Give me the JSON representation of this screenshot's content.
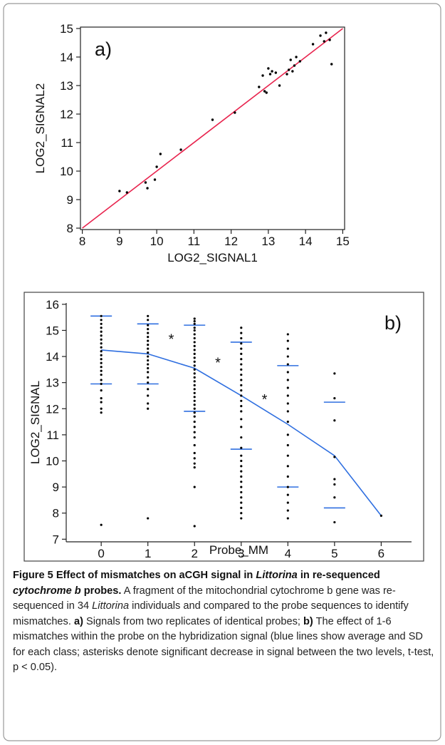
{
  "chart_data": [
    {
      "type": "scatter",
      "annotation": "a)",
      "x_label": "LOG2_SIGNAL1",
      "y_label": "LOG2_SIGNAL2",
      "xlim": [
        7.95,
        15.05
      ],
      "ylim": [
        7.95,
        15.05
      ],
      "xticks": [
        8,
        9,
        10,
        11,
        12,
        13,
        14,
        15
      ],
      "yticks": [
        8,
        9,
        10,
        11,
        12,
        13,
        14,
        15
      ],
      "points": {
        "color": "#000000",
        "x": [
          9.0,
          9.2,
          9.7,
          9.75,
          9.95,
          10.0,
          10.1,
          10.65,
          11.5,
          12.1,
          12.75,
          12.85,
          12.9,
          12.95,
          13.0,
          13.05,
          13.1,
          13.2,
          13.3,
          13.5,
          13.55,
          13.6,
          13.65,
          13.7,
          13.75,
          13.85,
          14.2,
          14.4,
          14.5,
          14.55,
          14.65,
          14.7
        ],
        "values": [
          9.3,
          9.25,
          9.6,
          9.4,
          9.7,
          10.15,
          10.6,
          10.75,
          11.8,
          12.05,
          12.95,
          13.35,
          12.8,
          12.75,
          13.6,
          13.4,
          13.5,
          13.45,
          13.0,
          13.4,
          13.55,
          13.9,
          13.5,
          13.7,
          14.0,
          13.85,
          14.45,
          14.75,
          14.55,
          14.85,
          14.6,
          13.75
        ]
      },
      "line": {
        "color": "#e8244e",
        "x": [
          8,
          15
        ],
        "values": [
          8,
          15
        ]
      }
    },
    {
      "type": "scatter",
      "annotation": "b)",
      "x_label": "Probe_MM",
      "y_label": "LOG2_SIGNAL",
      "xlim": [
        -0.75,
        6.65
      ],
      "ylim": [
        6.9,
        16.05
      ],
      "xticks": [
        0,
        1,
        2,
        3,
        4,
        5,
        6
      ],
      "yticks": [
        7,
        8,
        9,
        10,
        11,
        12,
        13,
        14,
        15,
        16
      ],
      "columns": [
        {
          "x": 0,
          "values": [
            15.55,
            15.4,
            15.25,
            15.1,
            14.95,
            14.8,
            14.65,
            14.5,
            14.35,
            14.2,
            14.05,
            13.9,
            13.75,
            13.6,
            13.45,
            13.3,
            13.1,
            12.95,
            12.7,
            12.4,
            12.25,
            12.0,
            11.85,
            7.55
          ]
        },
        {
          "x": 1,
          "values": [
            15.55,
            15.4,
            15.2,
            15.05,
            14.9,
            14.75,
            14.6,
            14.45,
            14.3,
            14.15,
            14.0,
            13.85,
            13.7,
            13.55,
            13.4,
            13.2,
            13.0,
            12.75,
            12.5,
            12.2,
            12.0,
            7.8
          ]
        },
        {
          "x": 2,
          "values": [
            15.45,
            15.35,
            15.25,
            15.1,
            15.0,
            14.85,
            14.7,
            14.55,
            14.4,
            14.25,
            14.1,
            13.95,
            13.8,
            13.65,
            13.5,
            13.35,
            13.2,
            13.05,
            12.9,
            12.75,
            12.6,
            12.45,
            12.3,
            12.15,
            12.0,
            11.85,
            11.7,
            11.5,
            11.3,
            11.1,
            10.9,
            10.6,
            10.3,
            10.1,
            9.9,
            9.75,
            9.0,
            7.5
          ]
        },
        {
          "x": 3,
          "values": [
            15.1,
            14.9,
            14.7,
            14.5,
            14.3,
            14.1,
            13.9,
            13.7,
            13.5,
            13.3,
            13.1,
            12.9,
            12.7,
            12.5,
            12.3,
            12.1,
            11.9,
            11.6,
            11.3,
            10.9,
            10.5,
            10.2,
            10.0,
            9.8,
            9.6,
            9.4,
            9.2,
            9.0,
            8.8,
            8.6,
            8.4,
            8.2,
            8.0,
            7.8
          ]
        },
        {
          "x": 4,
          "values": [
            14.85,
            14.6,
            14.3,
            14.0,
            13.7,
            13.4,
            13.1,
            12.8,
            12.5,
            12.2,
            11.9,
            11.5,
            11.0,
            10.6,
            10.2,
            9.8,
            9.4,
            9.0,
            8.7,
            8.4,
            8.1,
            7.8
          ]
        },
        {
          "x": 5,
          "values": [
            13.35,
            12.4,
            11.55,
            10.15,
            9.3,
            9.1,
            8.6,
            7.65
          ]
        },
        {
          "x": 6,
          "values": [
            7.9
          ]
        }
      ],
      "point_color": "#000000",
      "line": {
        "color": "#2f6fe0",
        "x": [
          0,
          1,
          2,
          3,
          4,
          5,
          6
        ],
        "values": [
          14.25,
          14.1,
          13.55,
          12.5,
          11.4,
          10.2,
          7.9
        ]
      },
      "sd_bounds": [
        {
          "x": 0,
          "upper": 15.55,
          "lower": 12.95
        },
        {
          "x": 1,
          "upper": 15.25,
          "lower": 12.95
        },
        {
          "x": 2,
          "upper": 15.2,
          "lower": 11.9
        },
        {
          "x": 3,
          "upper": 14.55,
          "lower": 10.45
        },
        {
          "x": 4,
          "upper": 13.65,
          "lower": 9.0
        },
        {
          "x": 5,
          "upper": 12.25,
          "lower": 8.2
        }
      ],
      "markers": [
        {
          "text": "*",
          "x": 1.5,
          "y": 14.75
        },
        {
          "text": "*",
          "x": 2.5,
          "y": 13.85
        },
        {
          "text": "*",
          "x": 3.5,
          "y": 12.45
        }
      ]
    }
  ],
  "caption": {
    "title": [
      "Figure 5 Effect of mismatches on aCGH signal in ",
      "Littorina",
      " in re-sequenced ",
      "cytochrome b",
      " probes."
    ],
    "body": [
      "A fragment of the mitochondrial cytochrome b gene was re-sequenced in 34 ",
      "Littorina",
      " individuals and compared to the probe sequences to identify mismatches. ",
      "a)",
      " Signals from two replicates of identical probes; ",
      "b)",
      " The effect of 1-6 mismatches within the probe on the hybridization signal (blue lines show average and SD for each class; asterisks denote significant decrease in signal between the two levels, t-test, p < 0.05)."
    ]
  }
}
